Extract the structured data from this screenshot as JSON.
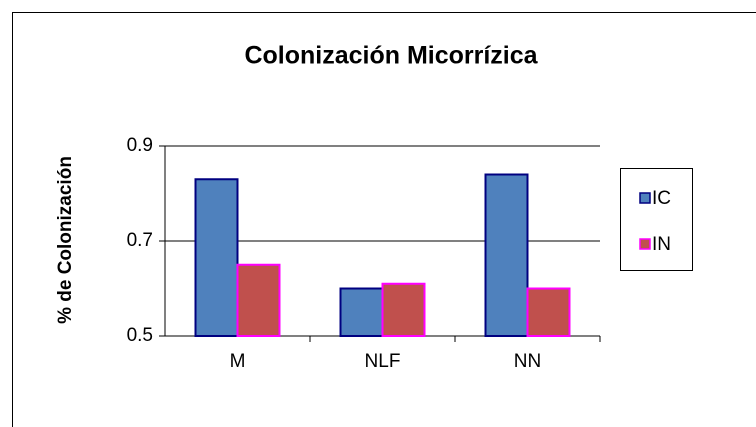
{
  "chart_data": {
    "type": "bar",
    "title": "Colonización Micorrízica",
    "y_label": "% de Colonización",
    "categories": [
      "M",
      "NLF",
      "NN"
    ],
    "series": [
      {
        "name": "IC",
        "color": "#4f81bd",
        "values": [
          0.83,
          0.6,
          0.84
        ]
      },
      {
        "name": "IN",
        "color": "#c0504d",
        "values": [
          0.65,
          0.61,
          0.6
        ]
      }
    ],
    "ylim": [
      0.5,
      0.9
    ],
    "yticks": [
      0.5,
      0.7,
      0.9
    ],
    "grid": true,
    "legend": "right"
  }
}
